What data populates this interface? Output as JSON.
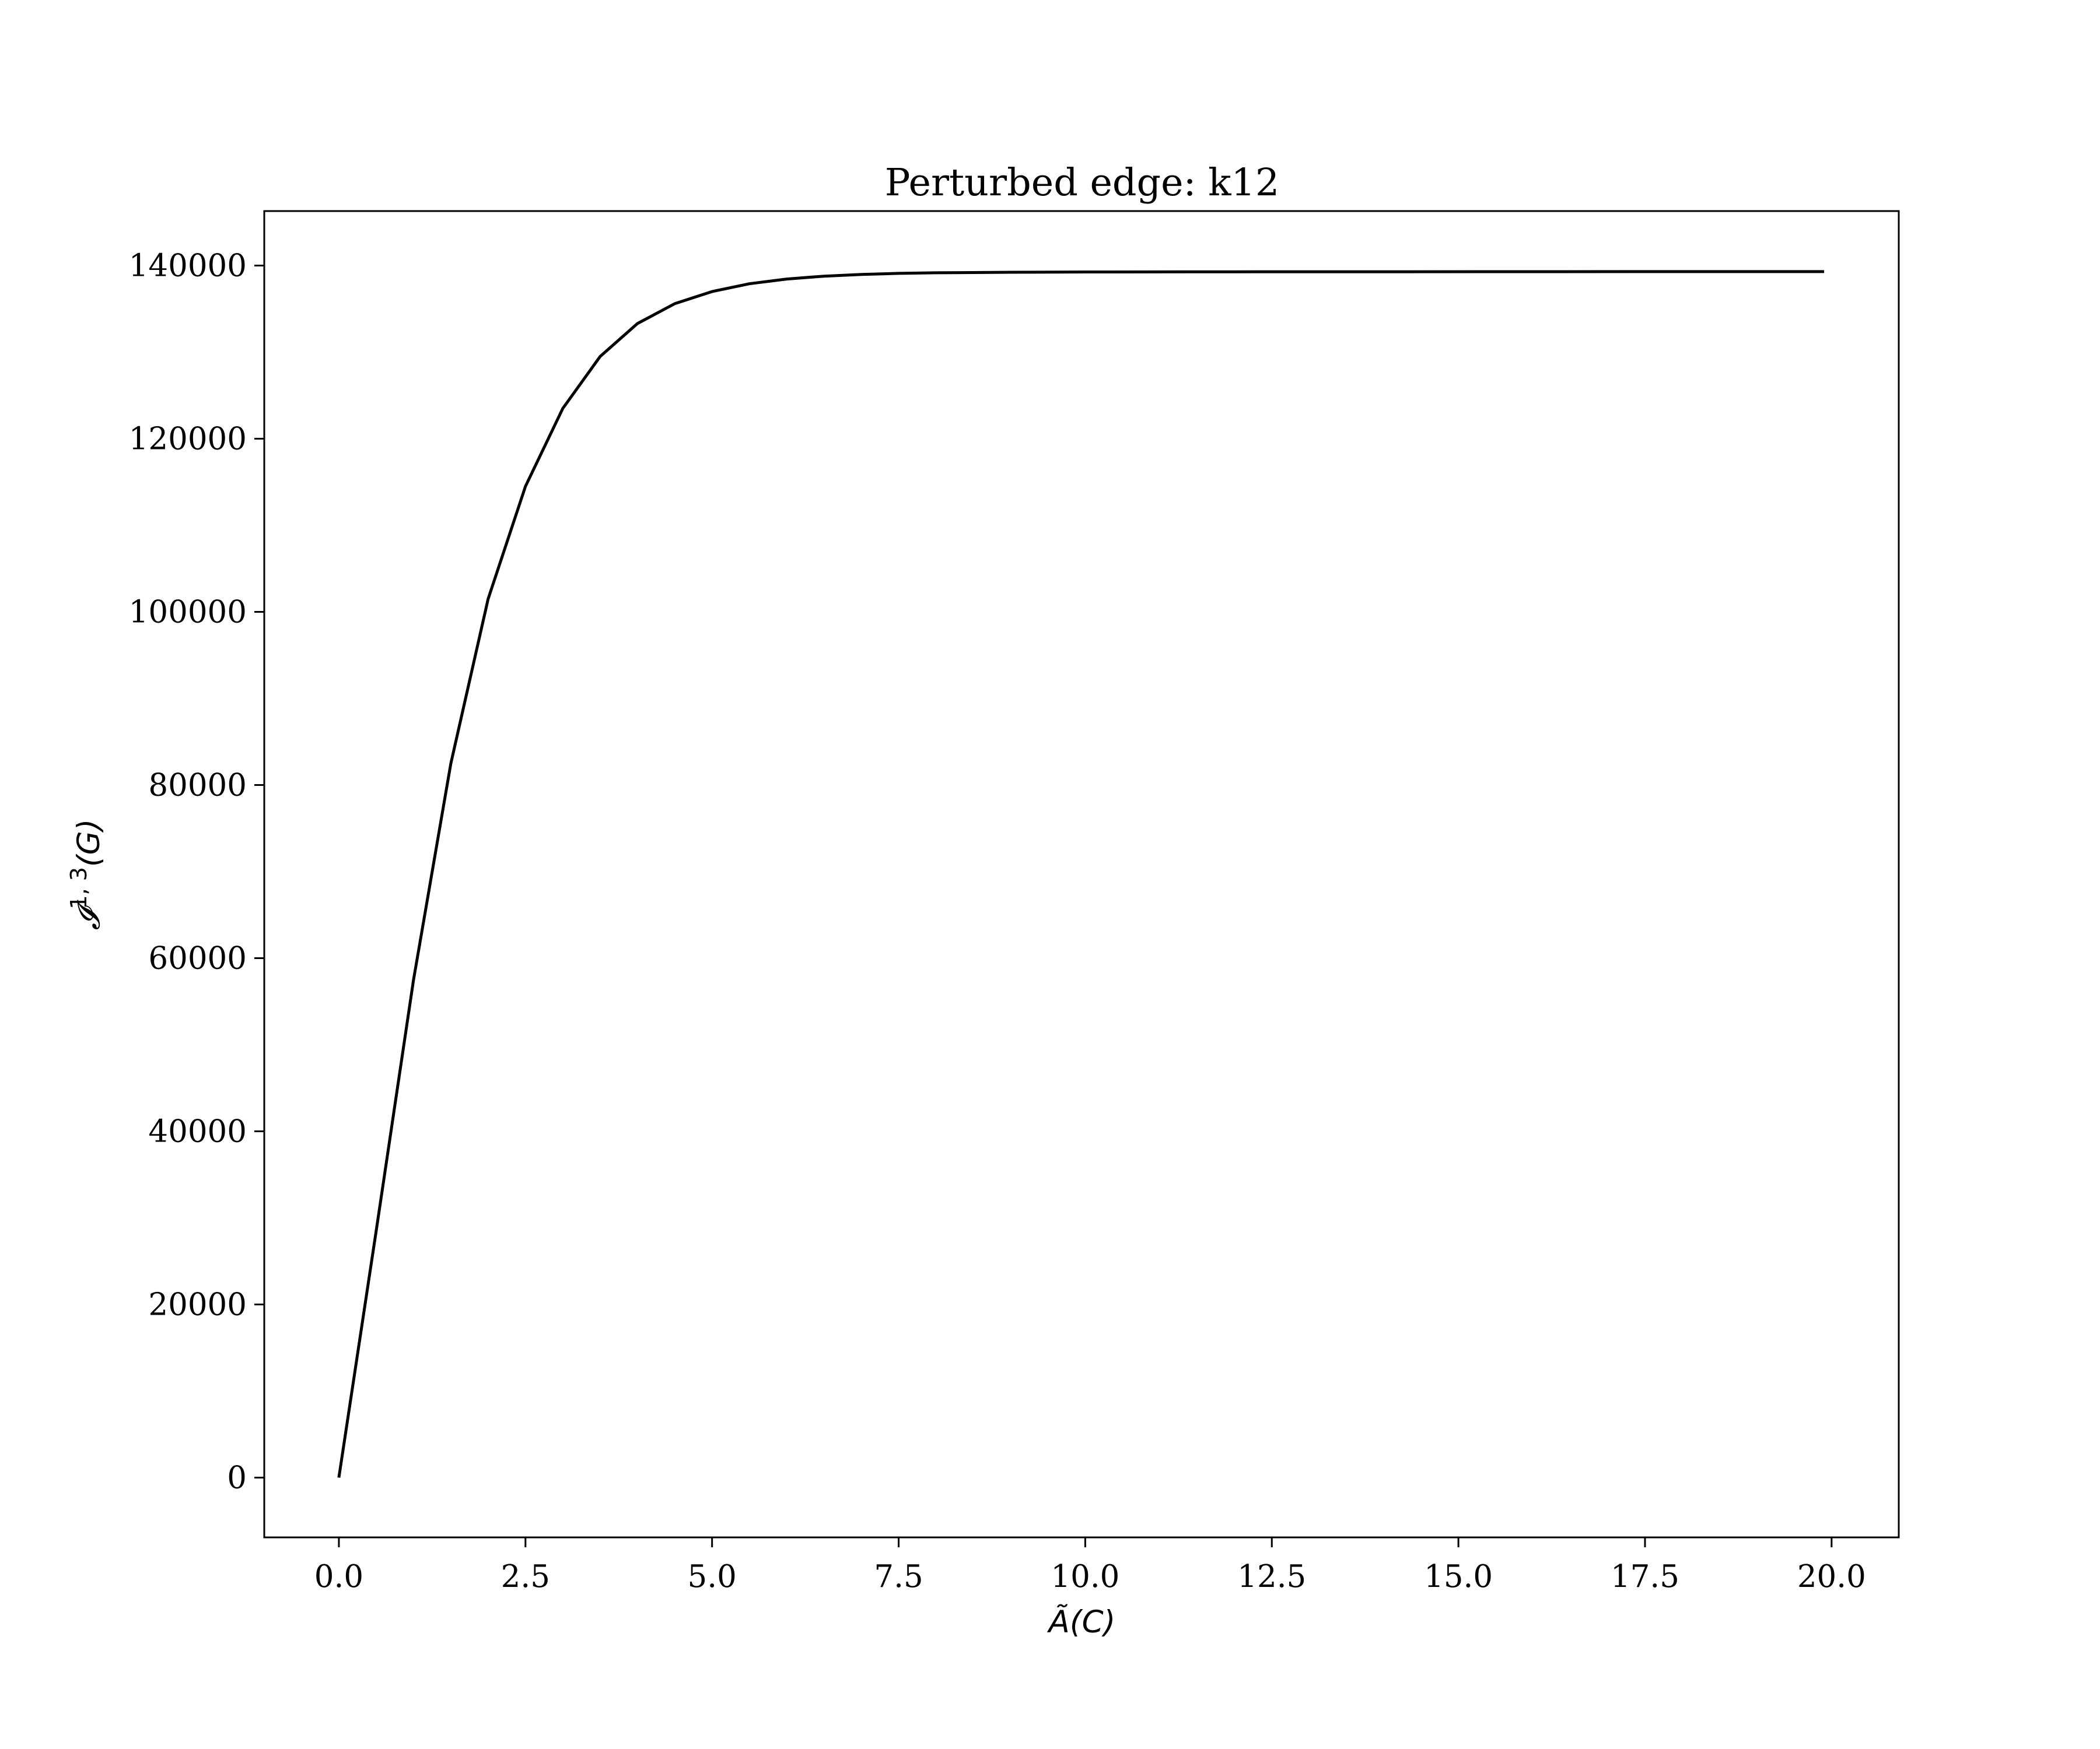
{
  "chart_data": {
    "type": "line",
    "title": "Perturbed edge: k12",
    "xlabel": "Ã(C)",
    "ylabel": "𝓘^{1,3}(G)",
    "xlim": [
      -1.0,
      20.9
    ],
    "ylim": [
      -6900,
      146300
    ],
    "x_ticks": [
      0.0,
      2.5,
      5.0,
      7.5,
      10.0,
      12.5,
      15.0,
      17.5,
      20.0
    ],
    "x_tick_labels": [
      "0.0",
      "2.5",
      "5.0",
      "7.5",
      "10.0",
      "12.5",
      "15.0",
      "17.5",
      "20.0"
    ],
    "y_ticks": [
      0,
      20000,
      40000,
      60000,
      80000,
      100000,
      120000,
      140000
    ],
    "y_tick_labels": [
      "0",
      "20000",
      "40000",
      "60000",
      "80000",
      "100000",
      "120000",
      "140000"
    ],
    "grid": false,
    "line_color": "#000000",
    "series": [
      {
        "x": [
          0.0,
          0.5,
          1.0,
          1.5,
          2.0,
          2.5,
          3.0,
          3.5,
          4.0,
          4.5,
          5.0,
          5.5,
          6.0,
          6.5,
          7.0,
          7.5,
          8.0,
          9.0,
          10.0,
          12.0,
          14.0,
          16.0,
          18.0,
          19.9
        ],
        "y": [
          0,
          28500,
          57500,
          82500,
          101500,
          114500,
          123500,
          129500,
          133300,
          135600,
          137000,
          137900,
          138450,
          138780,
          138980,
          139100,
          139170,
          139230,
          139260,
          139280,
          139290,
          139295,
          139300,
          139300
        ]
      }
    ]
  }
}
